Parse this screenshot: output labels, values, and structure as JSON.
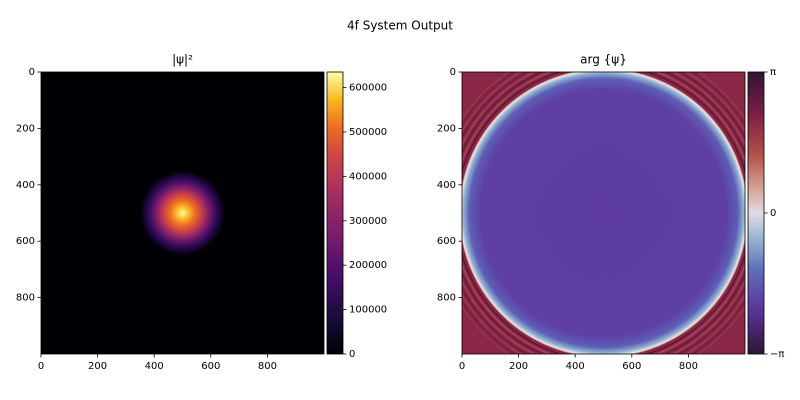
{
  "title": "4f System Output",
  "chart_data": [
    {
      "type": "image",
      "title": "|ψ|²",
      "colormap": "inferno",
      "xlim": [
        0,
        1000
      ],
      "ylim": [
        1000,
        0
      ],
      "xticks": [
        0,
        200,
        400,
        600,
        800
      ],
      "yticks": [
        0,
        200,
        400,
        600,
        800
      ],
      "clim": [
        0,
        635000
      ],
      "cticks": [
        0,
        100000,
        200000,
        300000,
        400000,
        500000,
        600000
      ]
    },
    {
      "type": "image",
      "title": "arg {ψ}",
      "colormap": "twilight_shifted",
      "xlim": [
        0,
        1000
      ],
      "ylim": [
        1000,
        0
      ],
      "xticks": [
        0,
        200,
        400,
        600,
        800
      ],
      "yticks": [
        0,
        200,
        400,
        600,
        800
      ],
      "clim": [
        -3.14159,
        3.14159
      ],
      "cticks": [
        {
          "value": -3.14159,
          "label": "−π"
        },
        0,
        {
          "value": 3.14159,
          "label": "π"
        }
      ]
    }
  ]
}
